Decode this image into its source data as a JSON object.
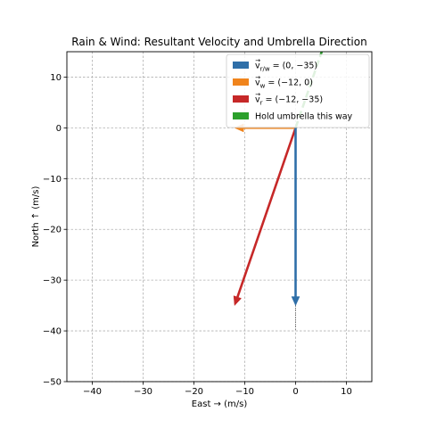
{
  "chart_data": {
    "type": "vector",
    "title": "Rain & Wind: Resultant Velocity and Umbrella Direction",
    "xlabel": "East  →   (m/s)",
    "ylabel": "North ↑   (m/s)",
    "xlim": [
      -45,
      15
    ],
    "ylim": [
      -50,
      15
    ],
    "xticks": [
      -40,
      -30,
      -20,
      -10,
      0,
      10
    ],
    "yticks": [
      -50,
      -40,
      -30,
      -20,
      -10,
      0,
      10
    ],
    "grid": true,
    "legend_position": "upper right",
    "vectors": [
      {
        "id": "rain-rel-wind",
        "label_sym": "v",
        "label_sub": "r/w",
        "label_eq": "= (0, −35)",
        "from": [
          0,
          0
        ],
        "to": [
          0,
          -35
        ],
        "color": "#2f6fa8"
      },
      {
        "id": "wind",
        "label_sym": "v",
        "label_sub": "w",
        "label_eq": "= (−12, 0)",
        "from": [
          0,
          0
        ],
        "to": [
          -12,
          0
        ],
        "color": "#f0841c"
      },
      {
        "id": "rain",
        "label_sym": "v",
        "label_sub": "r",
        "label_eq": "= (−12, −35)",
        "from": [
          0,
          0
        ],
        "to": [
          -12,
          -35
        ],
        "color": "#c62828"
      }
    ],
    "umbrella": {
      "label": "Hold umbrella this way",
      "from": [
        0,
        0
      ],
      "to": [
        12,
        35
      ],
      "color": "#2ca02c"
    },
    "dotted_guide": {
      "from": [
        0,
        -35
      ],
      "to": [
        0,
        -40
      ]
    }
  }
}
